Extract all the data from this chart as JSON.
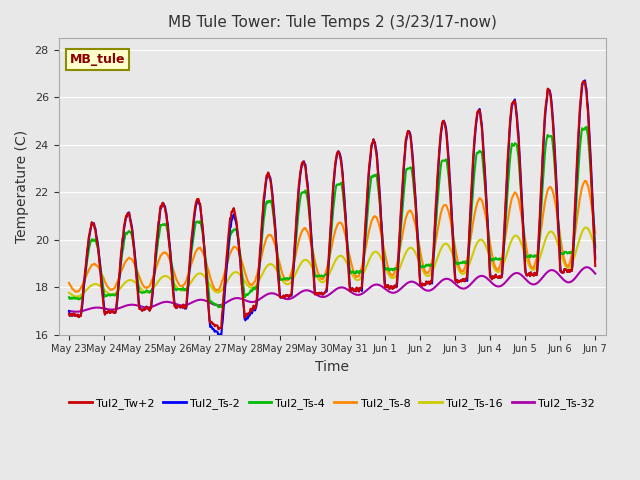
{
  "title": "MB Tule Tower: Tule Temps 2 (3/23/17-now)",
  "xlabel": "Time",
  "ylabel": "Temperature (C)",
  "ylim": [
    16,
    28.5
  ],
  "background_color": "#e8e8e8",
  "plot_bg_color": "#e8e8e8",
  "station_label": "MB_tule",
  "series": {
    "Tul2_Tw+2": {
      "color": "#cc0000",
      "lw": 1.5
    },
    "Tul2_Ts-2": {
      "color": "#0000ff",
      "lw": 1.5
    },
    "Tul2_Ts-4": {
      "color": "#00bb00",
      "lw": 1.5
    },
    "Tul2_Ts-8": {
      "color": "#ff8800",
      "lw": 1.5
    },
    "Tul2_Ts-16": {
      "color": "#cccc00",
      "lw": 1.5
    },
    "Tul2_Ts-32": {
      "color": "#aa00aa",
      "lw": 1.5
    }
  },
  "tick_labels": [
    "May 23",
    "May 24",
    "May 25",
    "May 26",
    "May 27",
    "May 28",
    "May 29",
    "May 30",
    "May 31",
    "Jun 1",
    "Jun 2",
    "Jun 3",
    "Jun 4",
    "Jun 5",
    "Jun 6",
    "Jun 7"
  ],
  "num_days": 15,
  "yticks": [
    16,
    18,
    20,
    22,
    24,
    26,
    28
  ]
}
